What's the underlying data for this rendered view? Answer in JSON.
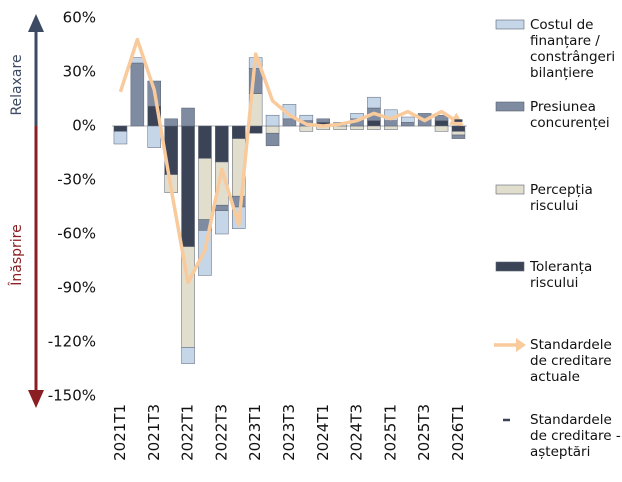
{
  "chart_data": {
    "type": "stacked-bar-line",
    "categories": [
      "2021T1",
      null,
      "2021T3",
      null,
      "2022T1",
      null,
      "2022T3",
      null,
      "2023T1",
      null,
      "2023T3",
      null,
      "2024T1",
      null,
      "2024T3",
      null,
      "2025T1",
      null,
      "2025T3",
      null,
      "2026T1"
    ],
    "series": [
      {
        "name": "Toleranța riscului",
        "color": "#3b4357",
        "kind": "bar",
        "values": [
          -3,
          0,
          11,
          -27,
          -67,
          -18,
          -20,
          -7,
          -4,
          0,
          0,
          0,
          2,
          0,
          0,
          3,
          0,
          0,
          0,
          3,
          -3
        ]
      },
      {
        "name": "Percepția riscului",
        "color": "#e2dece",
        "kind": "bar",
        "values": [
          0,
          0,
          0,
          -10,
          -56,
          -34,
          -24,
          -32,
          18,
          -4,
          0,
          -3,
          -2,
          -2,
          -2,
          -2,
          -2,
          0,
          0,
          -3,
          -2
        ]
      },
      {
        "name": "Presiunea concurenței",
        "color": "#7e8ba1",
        "kind": "bar",
        "values": [
          0,
          35,
          14,
          4,
          10,
          -6,
          -3,
          -6,
          14,
          -7,
          4,
          3,
          2,
          0,
          4,
          7,
          3,
          2,
          7,
          3,
          -2
        ]
      },
      {
        "name": "Costul de finanțare / constrângeri bilanțiere",
        "color": "#c6d6e9",
        "kind": "bar",
        "values": [
          -7,
          3,
          -12,
          0,
          -9,
          -25,
          -13,
          -12,
          6,
          6,
          8,
          3,
          0,
          2,
          3,
          6,
          6,
          3,
          0,
          0,
          0
        ]
      },
      {
        "name": "Standardele de creditare actuale",
        "color": "#f9ca9c",
        "kind": "line",
        "values": [
          19,
          48,
          20,
          -35,
          -87,
          -69,
          -24,
          -55,
          40,
          14,
          6,
          1,
          0,
          1,
          3,
          7,
          4,
          8,
          3,
          8,
          2
        ]
      },
      {
        "name": "Standardele de creditare - așteptări",
        "color": "#3b4357",
        "kind": "dash",
        "values": [
          null,
          null,
          null,
          null,
          null,
          null,
          null,
          null,
          null,
          null,
          null,
          null,
          null,
          null,
          null,
          null,
          null,
          null,
          null,
          null,
          3
        ]
      }
    ],
    "ylim": [
      -150,
      60
    ],
    "yticks": [
      {
        "value": 60,
        "label": "60%"
      },
      {
        "value": 30,
        "label": "30%"
      },
      {
        "value": 0,
        "label": "0%"
      },
      {
        "value": -30,
        "label": "-30%"
      },
      {
        "value": -60,
        "label": "-60%"
      },
      {
        "value": -90,
        "label": "-90%"
      },
      {
        "value": -120,
        "label": "-120%"
      },
      {
        "value": -150,
        "label": "-150%"
      }
    ],
    "up_label": "Relaxare",
    "down_label": "Înăsprire"
  }
}
